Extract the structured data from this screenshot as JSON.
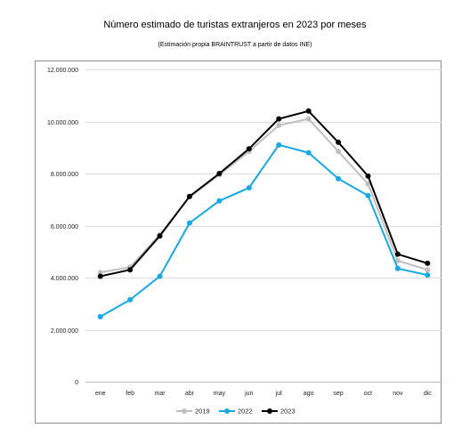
{
  "chart_data": {
    "type": "line",
    "title": "Número estimado de turistas extranjeros en 2023 por meses",
    "subtitle": "(Estimación propia BRAINTRUST a partir de datos INE)",
    "xlabel": "",
    "ylabel": "",
    "categories": [
      "ene",
      "feb",
      "mar",
      "abr",
      "may",
      "jun",
      "jul",
      "ago",
      "sep",
      "oct",
      "nov",
      "dic"
    ],
    "ylim": [
      0,
      12000000
    ],
    "yticks": [
      0,
      2000000,
      4000000,
      6000000,
      8000000,
      10000000,
      12000000
    ],
    "ytick_labels": [
      "0",
      "2.000.000",
      "4.000.000",
      "6.000.000",
      "8.000.000",
      "10.000.000",
      "12.000.000"
    ],
    "grid": true,
    "legend_position": "bottom",
    "series": [
      {
        "name": "2019",
        "color": "#bfbfbf",
        "values": [
          4200000,
          4400000,
          5650000,
          7100000,
          7950000,
          8850000,
          9850000,
          10100000,
          8850000,
          7600000,
          4650000,
          4300000
        ]
      },
      {
        "name": "2022",
        "color": "#17a9e6",
        "values": [
          2500000,
          3150000,
          4050000,
          6100000,
          6950000,
          7450000,
          9100000,
          8800000,
          7800000,
          7150000,
          4350000,
          4100000
        ]
      },
      {
        "name": "2023",
        "color": "#000000",
        "values": [
          4050000,
          4300000,
          5600000,
          7120000,
          8000000,
          8950000,
          10100000,
          10400000,
          9200000,
          7900000,
          4900000,
          4550000
        ]
      }
    ]
  }
}
